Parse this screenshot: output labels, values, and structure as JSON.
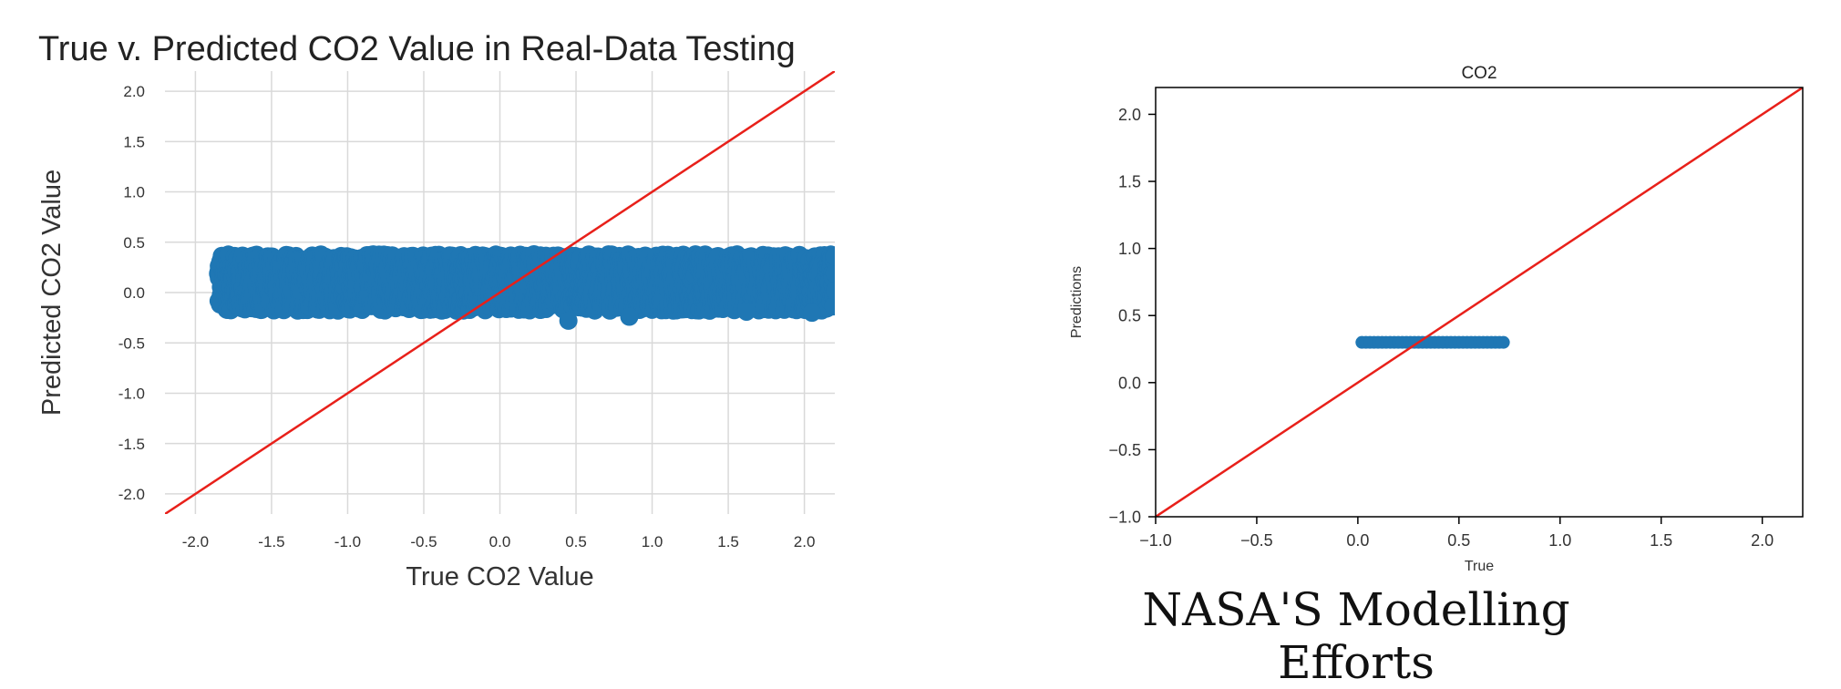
{
  "caption": "NASA'S Modelling Efforts",
  "chart_data": [
    {
      "type": "scatter",
      "title": "True v. Predicted CO2 Value in Real-Data Testing",
      "xlabel": "True CO2 Value",
      "ylabel": "Predicted CO2 Value",
      "xlim": [
        -2.2,
        2.2
      ],
      "ylim": [
        -2.2,
        2.2
      ],
      "x_ticks": [
        "-2.0",
        "-1.5",
        "-1.0",
        "-0.5",
        "0.0",
        "0.5",
        "1.0",
        "1.5",
        "2.0"
      ],
      "y_ticks": [
        "2.0",
        "1.5",
        "1.0",
        "0.5",
        "0.0",
        "-0.5",
        "-1.0",
        "-1.5",
        "-2.0"
      ],
      "grid": true,
      "point_color": "#1f77b4",
      "reference_line": {
        "from": [
          -2.2,
          -2.2
        ],
        "to": [
          2.2,
          2.2
        ],
        "color": "#e8201a"
      },
      "points_summary": {
        "x_range": [
          -1.85,
          2.2
        ],
        "y_range": [
          -0.2,
          0.4
        ],
        "outliers": [
          [
            0.45,
            -0.28
          ],
          [
            0.85,
            -0.24
          ],
          [
            1.62,
            -0.19
          ],
          [
            2.05,
            -0.2
          ]
        ]
      }
    },
    {
      "type": "scatter",
      "title": "CO2",
      "xlabel": "True",
      "ylabel": "Predictions",
      "xlim": [
        -1.0,
        2.2
      ],
      "ylim": [
        -1.0,
        2.2
      ],
      "x_ticks": [
        "−1.0",
        "−0.5",
        "0.0",
        "0.5",
        "1.0",
        "1.5",
        "2.0"
      ],
      "y_ticks": [
        "2.0",
        "1.5",
        "1.0",
        "0.5",
        "0.0",
        "−0.5",
        "−1.0"
      ],
      "grid": false,
      "point_color": "#1f77b4",
      "reference_line": {
        "from": [
          -1.0,
          -1.0
        ],
        "to": [
          2.2,
          2.2
        ],
        "color": "#e8201a"
      },
      "points_summary": {
        "x_range": [
          0.02,
          0.72
        ],
        "y_value": 0.3
      }
    }
  ]
}
